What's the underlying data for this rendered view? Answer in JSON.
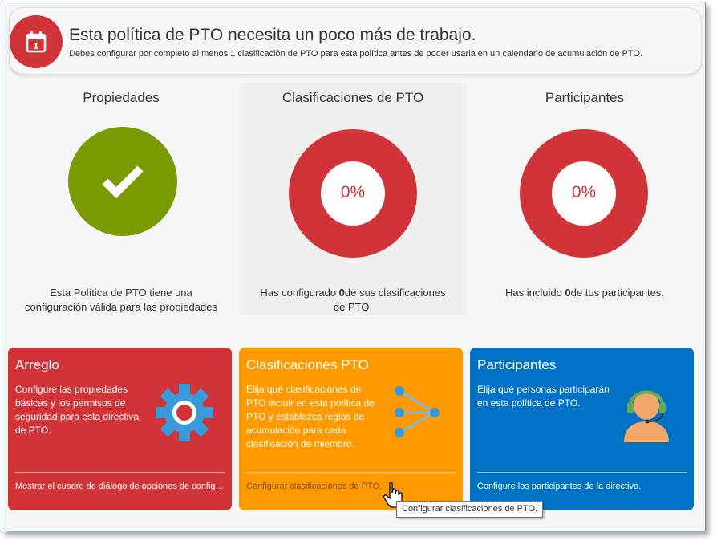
{
  "banner": {
    "icon": "calendar-icon",
    "title": "Esta política de PTO necesita un poco más de trabajo.",
    "subtitle": "Debes configurar por completo al menos 1 clasificación de PTO para esta política antes de poder usarla en un calendario de acumulación de PTO."
  },
  "status": {
    "properties": {
      "title": "Propiedades",
      "icon": "checkmark-icon",
      "desc_line1": "Esta Política de PTO tiene una",
      "desc_line2": "configuración válida para las propiedades"
    },
    "classifications": {
      "title": "Clasificaciones de PTO",
      "percent": "0%",
      "percent_value": 0,
      "desc_pre": "Has configurado ",
      "desc_num": "0",
      "desc_post": "de sus clasificaciones",
      "desc_line2": "de PTO."
    },
    "participants": {
      "title": "Participantes",
      "percent": "0%",
      "percent_value": 0,
      "desc_pre": "Has incluido ",
      "desc_num": "0",
      "desc_post": "de tus participantes."
    }
  },
  "cards": {
    "fix": {
      "title": "Arreglo",
      "desc": "Configure las propiedades básicas y los permisos de seguridad para esta directiva de PTO.",
      "link": "Mostrar el cuadro de diálogo de opciones de configuración",
      "icon": "gear-icon"
    },
    "classifications": {
      "title": "Clasificaciones PTO",
      "desc": "Elija qué clasificaciones de PTO incluir en esta política de PTO y establezca reglas de acumulación para cada clasificación de miembro.",
      "link": "Configurar clasificaciones de PTO.",
      "icon": "merge-arrows-icon"
    },
    "participants": {
      "title": "Participantes",
      "desc": "Elija qué personas participarán en esta política de PTO.",
      "link": "Configure los participantes de la directiva.",
      "icon": "headset-person-icon"
    }
  },
  "tooltip": {
    "text": "Configurar clasificaciones de PTO."
  },
  "colors": {
    "red": "#d13438",
    "green": "#7a9a01",
    "orange": "#ff9900",
    "blue": "#0072c6"
  }
}
